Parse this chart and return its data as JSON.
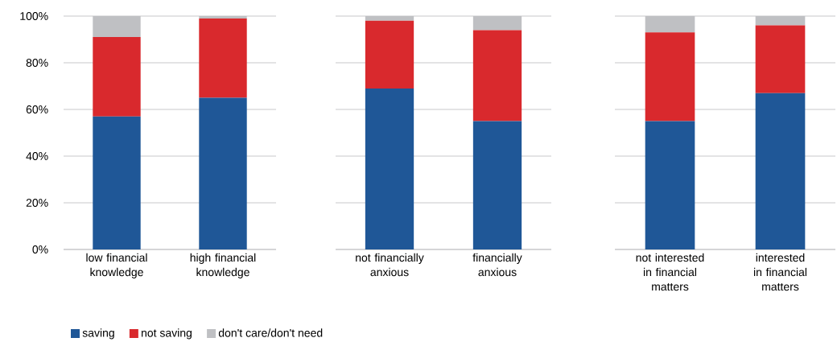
{
  "chart_data": [
    {
      "type": "bar",
      "stacked": true,
      "categories": [
        "low financial knowledge",
        "high financial knowledge"
      ],
      "series": [
        {
          "name": "saving",
          "color": "#1f5797",
          "values": [
            57,
            65
          ]
        },
        {
          "name": "not saving",
          "color": "#d9292d",
          "values": [
            34,
            34
          ]
        },
        {
          "name": "don't care/don't need",
          "color": "#bfc0c3",
          "values": [
            9,
            1
          ]
        }
      ],
      "ylim": [
        0,
        100
      ],
      "yticks": [
        {
          "value": 0,
          "label": "0%"
        },
        {
          "value": 20,
          "label": "20%"
        },
        {
          "value": 40,
          "label": "40%"
        },
        {
          "value": 60,
          "label": "60%"
        },
        {
          "value": 80,
          "label": "80%"
        },
        {
          "value": 100,
          "label": "100%"
        }
      ],
      "grid": "y",
      "legend": "bottom"
    },
    {
      "type": "bar",
      "stacked": true,
      "categories": [
        "not financially anxious",
        "financially anxious"
      ],
      "series": [
        {
          "color": "#1f5797",
          "values": [
            69,
            55
          ]
        },
        {
          "color": "#d9292d",
          "values": [
            29,
            39
          ]
        },
        {
          "color": "#bfc0c3",
          "values": [
            2,
            6
          ]
        }
      ],
      "ylim": [
        0,
        100
      ],
      "yticks": [
        {
          "value": 0,
          "label": null
        },
        {
          "value": 20,
          "label": null
        },
        {
          "value": 40,
          "label": null
        },
        {
          "value": 60,
          "label": null
        },
        {
          "value": 80,
          "label": null
        },
        {
          "value": 100,
          "label": null
        }
      ],
      "grid": "y",
      "tick_labels": "x"
    },
    {
      "type": "bar",
      "stacked": true,
      "categories": [
        "not interested in financial matters",
        "interested in financial matters"
      ],
      "series": [
        {
          "color": "#1f5797",
          "values": [
            55,
            67
          ]
        },
        {
          "color": "#d9292d",
          "values": [
            38,
            29
          ]
        },
        {
          "color": "#bfc0c3",
          "values": [
            7,
            4
          ]
        }
      ],
      "ylim": [
        0,
        100
      ],
      "yticks": [
        {
          "value": 0,
          "label": null
        },
        {
          "value": 20,
          "label": null
        },
        {
          "value": 40,
          "label": null
        },
        {
          "value": 60,
          "label": null
        },
        {
          "value": 80,
          "label": null
        },
        {
          "value": 100,
          "label": null
        }
      ],
      "grid": "y",
      "tick_labels": "x"
    }
  ]
}
